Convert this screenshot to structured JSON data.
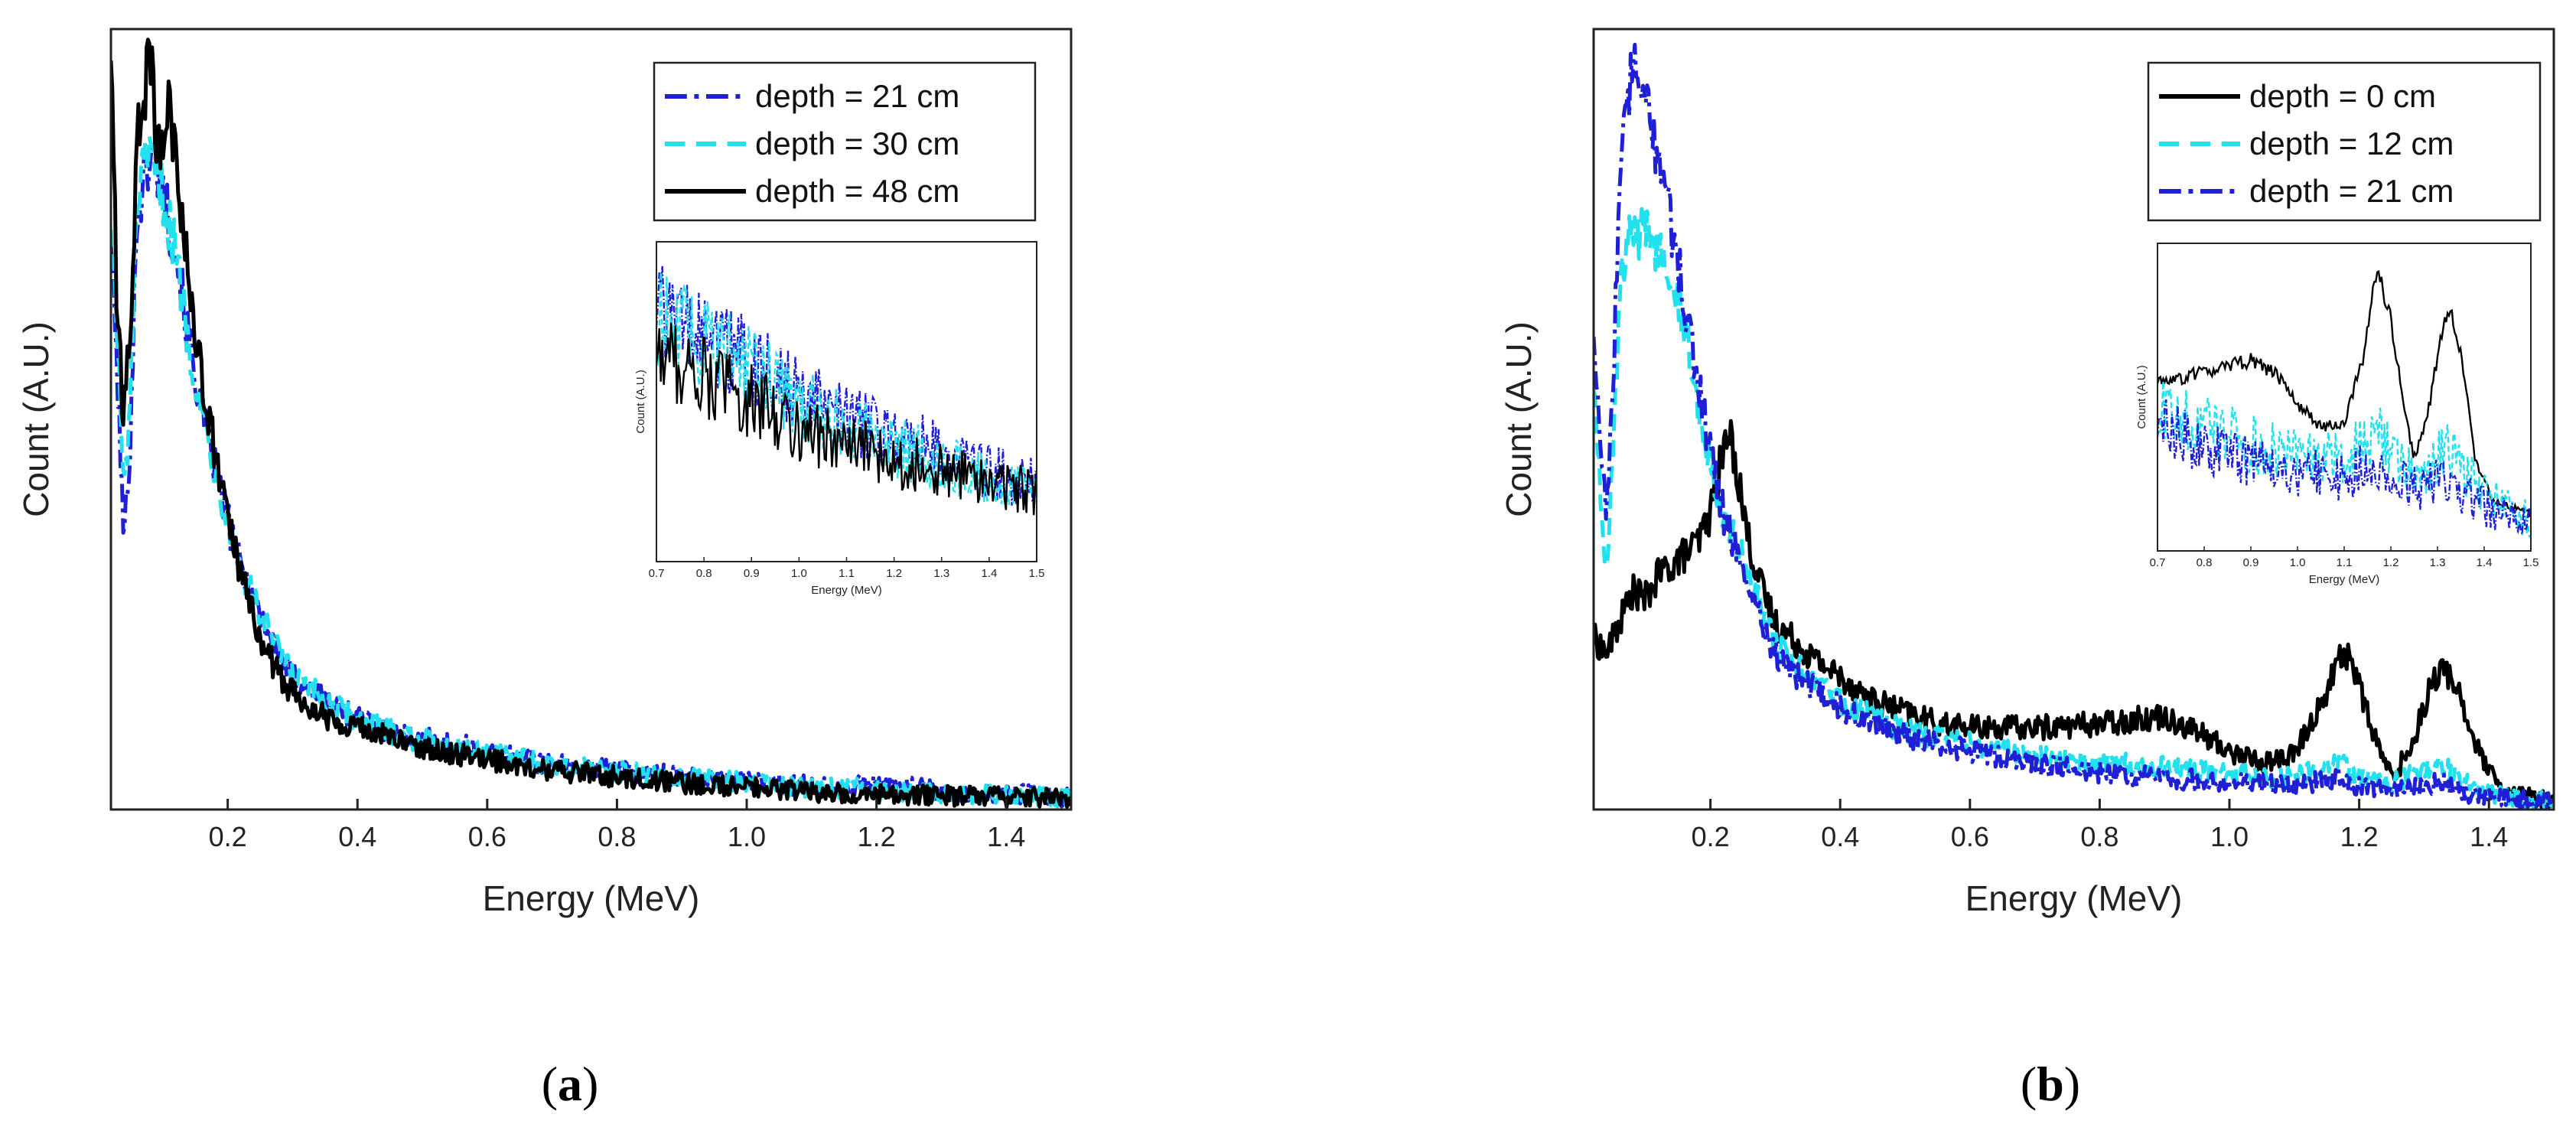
{
  "chart_data": [
    {
      "type": "line",
      "panel_label": "a",
      "xlabel": "Energy (MeV)",
      "ylabel": "Count (A.U.)",
      "xlim": [
        0.02,
        1.5
      ],
      "ylim": [
        0,
        1.0
      ],
      "y_ticks_shown": false,
      "x_ticks": [
        0.2,
        0.4,
        0.6,
        0.8,
        1.0,
        1.2,
        1.4
      ],
      "x_tick_labels": [
        "0.2",
        "0.4",
        "0.6",
        "0.8",
        "1.0",
        "1.2",
        "1.4"
      ],
      "legend_position": "top-right",
      "series": [
        {
          "name": "depth = 21 cm",
          "color": "#1f1fd6",
          "dash": "dashdot",
          "x": [
            0.02,
            0.03,
            0.04,
            0.05,
            0.06,
            0.07,
            0.08,
            0.09,
            0.1,
            0.11,
            0.12,
            0.14,
            0.16,
            0.18,
            0.2,
            0.22,
            0.25,
            0.28,
            0.3,
            0.35,
            0.4,
            0.45,
            0.5,
            0.6,
            0.7,
            0.8,
            0.9,
            1.0,
            1.1,
            1.2,
            1.3,
            1.4,
            1.5
          ],
          "y": [
            0.74,
            0.55,
            0.34,
            0.48,
            0.76,
            0.8,
            0.84,
            0.82,
            0.8,
            0.75,
            0.72,
            0.6,
            0.51,
            0.44,
            0.37,
            0.31,
            0.25,
            0.2,
            0.17,
            0.14,
            0.118,
            0.1,
            0.09,
            0.075,
            0.058,
            0.05,
            0.042,
            0.036,
            0.03,
            0.032,
            0.024,
            0.02,
            0.016
          ]
        },
        {
          "name": "depth = 30 cm",
          "color": "#22e0ee",
          "dash": "dash",
          "x": [
            0.02,
            0.03,
            0.04,
            0.05,
            0.06,
            0.07,
            0.08,
            0.09,
            0.1,
            0.11,
            0.12,
            0.14,
            0.16,
            0.18,
            0.2,
            0.22,
            0.25,
            0.28,
            0.3,
            0.35,
            0.4,
            0.45,
            0.5,
            0.6,
            0.7,
            0.8,
            0.9,
            1.0,
            1.1,
            1.2,
            1.3,
            1.4,
            1.5
          ],
          "y": [
            0.76,
            0.6,
            0.4,
            0.52,
            0.78,
            0.81,
            0.83,
            0.82,
            0.79,
            0.75,
            0.71,
            0.6,
            0.51,
            0.44,
            0.37,
            0.31,
            0.25,
            0.2,
            0.17,
            0.14,
            0.116,
            0.1,
            0.088,
            0.072,
            0.056,
            0.048,
            0.04,
            0.034,
            0.028,
            0.026,
            0.022,
            0.018,
            0.015
          ]
        },
        {
          "name": "depth = 48 cm",
          "color": "#000000",
          "dash": "solid",
          "x": [
            0.02,
            0.03,
            0.04,
            0.05,
            0.06,
            0.07,
            0.08,
            0.09,
            0.1,
            0.11,
            0.12,
            0.14,
            0.16,
            0.18,
            0.2,
            0.22,
            0.25,
            0.28,
            0.3,
            0.35,
            0.4,
            0.45,
            0.5,
            0.6,
            0.7,
            0.8,
            0.9,
            1.0,
            1.1,
            1.2,
            1.3,
            1.4,
            1.5
          ],
          "y": [
            0.98,
            0.62,
            0.5,
            0.62,
            0.85,
            0.9,
            0.98,
            0.86,
            0.85,
            0.9,
            0.84,
            0.68,
            0.55,
            0.46,
            0.37,
            0.3,
            0.22,
            0.17,
            0.15,
            0.12,
            0.106,
            0.092,
            0.08,
            0.064,
            0.05,
            0.042,
            0.034,
            0.028,
            0.022,
            0.02,
            0.018,
            0.016,
            0.014
          ]
        }
      ],
      "inset": {
        "xlabel": "Energy (MeV)",
        "ylabel": "Count (A.U.)",
        "xlim": [
          0.7,
          1.5
        ],
        "x_ticks": [
          0.7,
          0.8,
          0.9,
          1.0,
          1.1,
          1.2,
          1.3,
          1.4,
          1.5
        ],
        "x_tick_labels": [
          "0.7",
          "0.8",
          "0.9",
          "1.0",
          "1.1",
          "1.2",
          "1.3",
          "1.4",
          "1.5"
        ],
        "series": [
          {
            "name": "depth = 21 cm",
            "color": "#1f1fd6",
            "dash": "dashdot",
            "x": [
              0.7,
              0.8,
              0.9,
              1.0,
              1.1,
              1.2,
              1.3,
              1.4,
              1.5
            ],
            "y": [
              0.78,
              0.7,
              0.62,
              0.52,
              0.44,
              0.4,
              0.34,
              0.28,
              0.24
            ]
          },
          {
            "name": "depth = 30 cm",
            "color": "#22e0ee",
            "dash": "dash",
            "x": [
              0.7,
              0.8,
              0.9,
              1.0,
              1.1,
              1.2,
              1.3,
              1.4,
              1.5
            ],
            "y": [
              0.76,
              0.68,
              0.6,
              0.5,
              0.42,
              0.36,
              0.31,
              0.26,
              0.23
            ]
          },
          {
            "name": "depth = 48 cm",
            "color": "#000000",
            "dash": "solid",
            "x": [
              0.7,
              0.8,
              0.9,
              1.0,
              1.1,
              1.2,
              1.3,
              1.4,
              1.5
            ],
            "y": [
              0.66,
              0.58,
              0.5,
              0.42,
              0.36,
              0.32,
              0.28,
              0.25,
              0.22
            ]
          }
        ]
      }
    },
    {
      "type": "line",
      "panel_label": "b",
      "xlabel": "Energy (MeV)",
      "ylabel": "Count (A.U.)",
      "xlim": [
        0.02,
        1.5
      ],
      "ylim": [
        0,
        1.0
      ],
      "y_ticks_shown": false,
      "x_ticks": [
        0.2,
        0.4,
        0.6,
        0.8,
        1.0,
        1.2,
        1.4
      ],
      "x_tick_labels": [
        "0.2",
        "0.4",
        "0.6",
        "0.8",
        "1.0",
        "1.2",
        "1.4"
      ],
      "legend_position": "top-right",
      "series": [
        {
          "name": "depth = 0 cm",
          "color": "#000000",
          "dash": "solid",
          "x": [
            0.02,
            0.04,
            0.06,
            0.08,
            0.1,
            0.12,
            0.15,
            0.18,
            0.2,
            0.22,
            0.23,
            0.24,
            0.26,
            0.28,
            0.3,
            0.35,
            0.4,
            0.45,
            0.5,
            0.55,
            0.6,
            0.7,
            0.8,
            0.85,
            0.9,
            0.95,
            1.0,
            1.05,
            1.1,
            1.15,
            1.17,
            1.19,
            1.22,
            1.25,
            1.28,
            1.31,
            1.33,
            1.35,
            1.38,
            1.42,
            1.5
          ],
          "y": [
            0.22,
            0.2,
            0.24,
            0.28,
            0.27,
            0.3,
            0.32,
            0.34,
            0.38,
            0.46,
            0.48,
            0.44,
            0.34,
            0.28,
            0.24,
            0.2,
            0.17,
            0.14,
            0.125,
            0.11,
            0.105,
            0.105,
            0.11,
            0.115,
            0.12,
            0.1,
            0.075,
            0.06,
            0.07,
            0.15,
            0.2,
            0.19,
            0.1,
            0.04,
            0.08,
            0.16,
            0.18,
            0.16,
            0.08,
            0.02,
            0.01
          ]
        },
        {
          "name": "depth = 12 cm",
          "color": "#22e0ee",
          "dash": "dash",
          "x": [
            0.02,
            0.03,
            0.04,
            0.05,
            0.06,
            0.07,
            0.08,
            0.09,
            0.1,
            0.12,
            0.14,
            0.16,
            0.18,
            0.2,
            0.22,
            0.25,
            0.28,
            0.3,
            0.35,
            0.4,
            0.45,
            0.5,
            0.6,
            0.7,
            0.8,
            0.9,
            1.0,
            1.1,
            1.15,
            1.17,
            1.2,
            1.25,
            1.3,
            1.33,
            1.36,
            1.4,
            1.5
          ],
          "y": [
            0.55,
            0.42,
            0.3,
            0.45,
            0.65,
            0.72,
            0.74,
            0.73,
            0.74,
            0.72,
            0.7,
            0.62,
            0.52,
            0.45,
            0.38,
            0.32,
            0.25,
            0.21,
            0.17,
            0.14,
            0.12,
            0.1,
            0.085,
            0.07,
            0.06,
            0.055,
            0.045,
            0.04,
            0.055,
            0.06,
            0.04,
            0.035,
            0.05,
            0.06,
            0.035,
            0.02,
            0.01
          ]
        },
        {
          "name": "depth = 21 cm",
          "color": "#1f1fd6",
          "dash": "dashdot",
          "x": [
            0.02,
            0.03,
            0.04,
            0.05,
            0.06,
            0.07,
            0.08,
            0.09,
            0.1,
            0.12,
            0.14,
            0.16,
            0.18,
            0.2,
            0.22,
            0.25,
            0.28,
            0.3,
            0.35,
            0.4,
            0.45,
            0.5,
            0.6,
            0.7,
            0.8,
            0.9,
            1.0,
            1.1,
            1.15,
            1.17,
            1.2,
            1.25,
            1.3,
            1.33,
            1.36,
            1.4,
            1.5
          ],
          "y": [
            0.62,
            0.48,
            0.38,
            0.56,
            0.78,
            0.9,
            0.95,
            0.93,
            0.9,
            0.84,
            0.75,
            0.65,
            0.55,
            0.46,
            0.38,
            0.31,
            0.24,
            0.2,
            0.16,
            0.13,
            0.11,
            0.095,
            0.075,
            0.058,
            0.048,
            0.04,
            0.035,
            0.03,
            0.038,
            0.04,
            0.03,
            0.025,
            0.03,
            0.035,
            0.02,
            0.015,
            0.008
          ]
        }
      ],
      "inset": {
        "xlabel": "Energy (MeV)",
        "ylabel": "Count (A.U.)",
        "xlim": [
          0.7,
          1.5
        ],
        "x_ticks": [
          0.7,
          0.8,
          0.9,
          1.0,
          1.1,
          1.2,
          1.3,
          1.4,
          1.5
        ],
        "x_tick_labels": [
          "0.7",
          "0.8",
          "0.9",
          "1.0",
          "1.1",
          "1.2",
          "1.3",
          "1.4",
          "1.5"
        ],
        "series": [
          {
            "name": "depth = 0 cm",
            "color": "#000000",
            "dash": "solid",
            "x": [
              0.7,
              0.75,
              0.8,
              0.85,
              0.9,
              0.95,
              1.0,
              1.05,
              1.1,
              1.14,
              1.17,
              1.2,
              1.23,
              1.25,
              1.28,
              1.31,
              1.33,
              1.35,
              1.38,
              1.42,
              1.5
            ],
            "y": [
              0.55,
              0.56,
              0.58,
              0.6,
              0.62,
              0.58,
              0.48,
              0.4,
              0.42,
              0.62,
              0.92,
              0.75,
              0.45,
              0.3,
              0.45,
              0.72,
              0.78,
              0.65,
              0.3,
              0.16,
              0.12
            ]
          },
          {
            "name": "depth = 12 cm",
            "color": "#22e0ee",
            "dash": "dash",
            "x": [
              0.7,
              0.8,
              0.9,
              1.0,
              1.1,
              1.15,
              1.17,
              1.2,
              1.25,
              1.3,
              1.33,
              1.36,
              1.4,
              1.5
            ],
            "y": [
              0.45,
              0.4,
              0.35,
              0.3,
              0.3,
              0.36,
              0.38,
              0.32,
              0.24,
              0.3,
              0.34,
              0.25,
              0.18,
              0.1
            ]
          },
          {
            "name": "depth = 21 cm",
            "color": "#1f1fd6",
            "dash": "dashdot",
            "x": [
              0.7,
              0.8,
              0.9,
              1.0,
              1.1,
              1.15,
              1.17,
              1.2,
              1.25,
              1.3,
              1.33,
              1.36,
              1.4,
              1.5
            ],
            "y": [
              0.4,
              0.34,
              0.3,
              0.26,
              0.24,
              0.27,
              0.28,
              0.24,
              0.2,
              0.22,
              0.25,
              0.18,
              0.14,
              0.08
            ]
          }
        ]
      }
    }
  ]
}
